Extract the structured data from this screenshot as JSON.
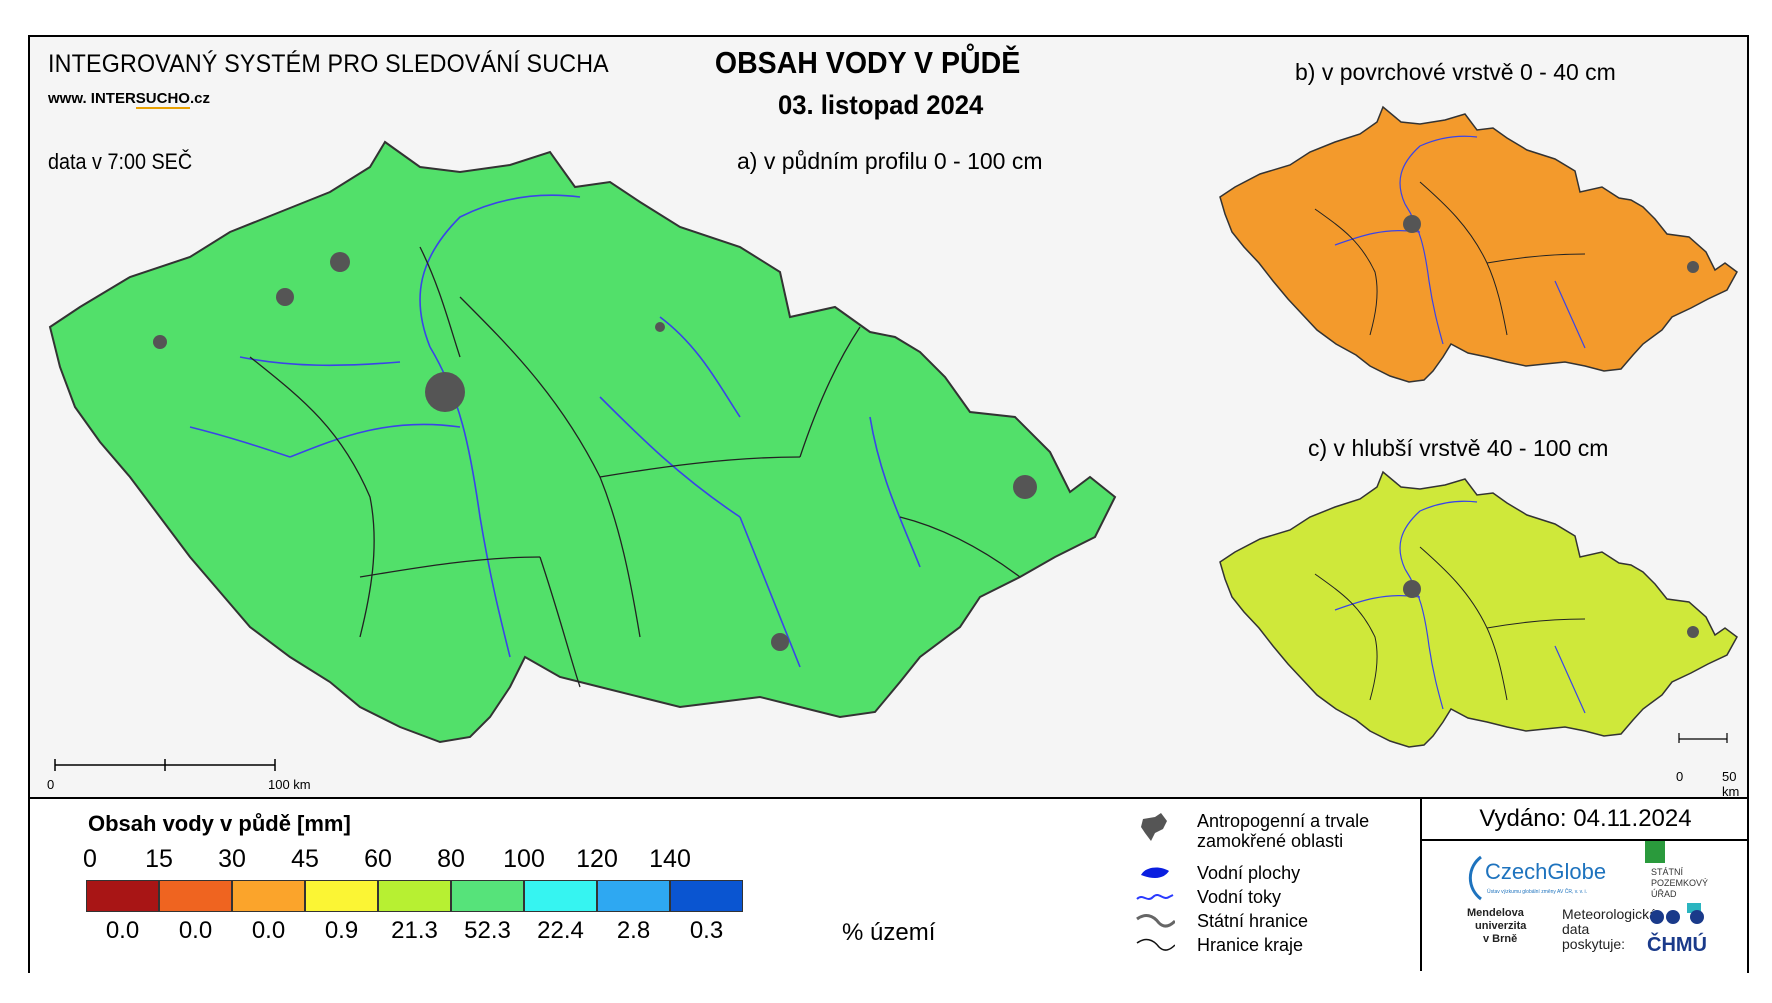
{
  "header": {
    "system_title": "INTEGROVANÝ SYSTÉM PRO SLEDOVÁNÍ SUCHA",
    "website_prefix": "www. INTER",
    "website_highlight": "SUCHO",
    "website_suffix": ".cz",
    "data_time": "data v 7:00 SEČ",
    "main_title": "OBSAH VODY V PŮDĚ",
    "date": "03. listopad 2024"
  },
  "maps": {
    "a_title": "a) v půdním profilu 0 - 100 cm",
    "b_title": "b) v povrchové vrstvě 0 - 40 cm",
    "c_title": "c) v hlubší vrstvě 40 - 100 cm",
    "a_color": "#52e06a",
    "b_color": "#f39a2c",
    "c_color": "#cfe83a",
    "a_scale": {
      "start": "0",
      "end": "100 km"
    },
    "c_scale": {
      "start": "0",
      "end": "50 km"
    }
  },
  "legend": {
    "title": "Obsah vody v půdě  [mm]",
    "ticks": [
      "0",
      "15",
      "30",
      "45",
      "60",
      "80",
      "100",
      "120",
      "140"
    ],
    "colors": [
      "#a81515",
      "#ef6420",
      "#fba42b",
      "#fbf534",
      "#b7f032",
      "#56e37a",
      "#36f4f1",
      "#2ea8f2",
      "#0a55d1"
    ],
    "percentages": [
      "0.0",
      "0.0",
      "0.0",
      "0.9",
      "21.3",
      "52.3",
      "22.4",
      "2.8",
      "0.3"
    ],
    "unit": "% území"
  },
  "symbols": {
    "anthropogenic": "Antropogenní a trvale zamokřené oblasti",
    "water_bodies": "Vodní plochy",
    "rivers": "Vodní toky",
    "state_border": "Státní hranice",
    "region_border": "Hranice kraje"
  },
  "issued": "Vydáno: 04.11.2024",
  "logos": {
    "czechglobe": "CzechGlobe",
    "czechglobe_sub": "Ústav výzkumu globální změny AV ČR, v. v. i.",
    "spu": [
      "STÁTNÍ",
      "POZEMKOVÝ",
      "ÚŘAD"
    ],
    "mendelu": [
      "Mendelova",
      "univerzita",
      "v Brně"
    ],
    "met": [
      "Meteorologická",
      "data",
      "poskytuje:"
    ],
    "chmu": "ČHMÚ"
  }
}
